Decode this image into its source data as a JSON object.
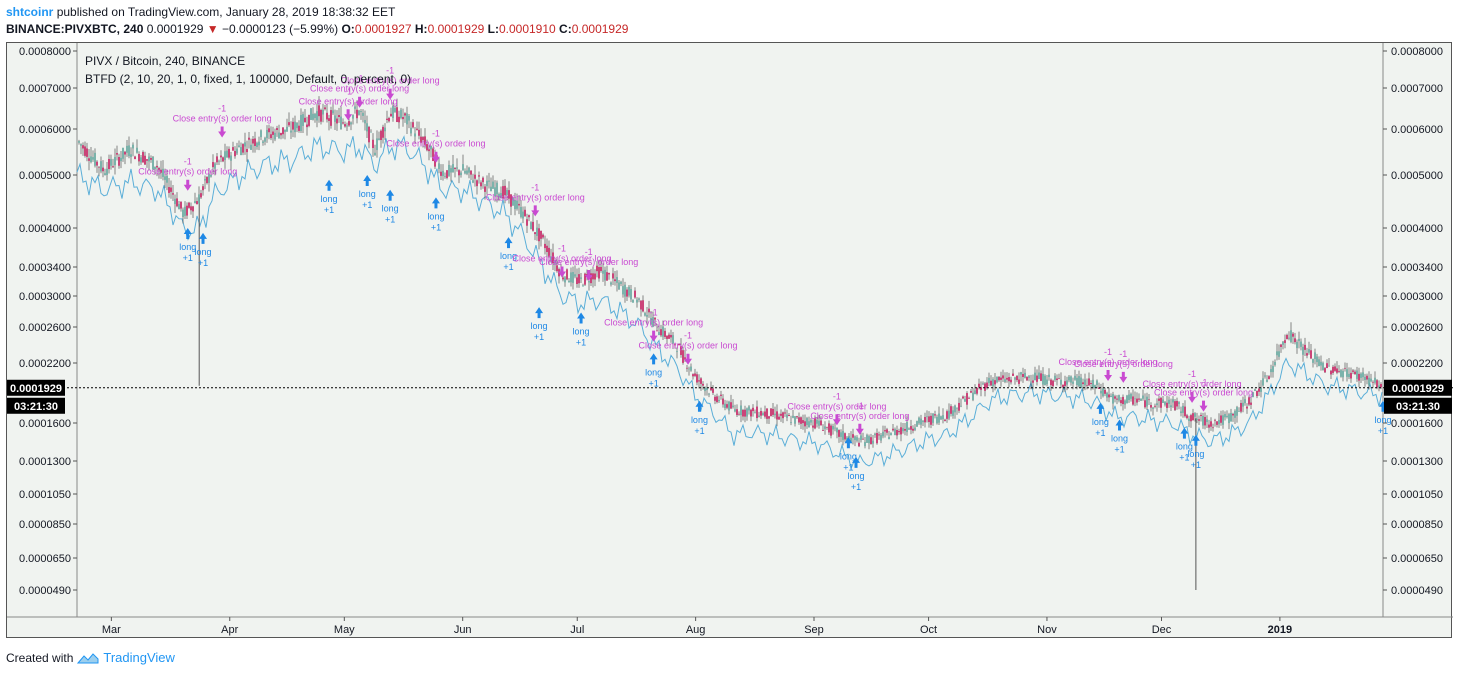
{
  "header": {
    "user": "shtcoinr",
    "published_text": "published on TradingView.com, January 28, 2019 18:38:32 EET",
    "symbol": "BINANCE:PIVXBTC, 240",
    "last": "0.0001929",
    "change": "−0.0000123 (−5.99%)",
    "o_label": "O:",
    "o": "0.0001927",
    "h_label": "H:",
    "h": "0.0001929",
    "l_label": "L:",
    "l": "0.0001910",
    "c_label": "C:",
    "c": "0.0001929"
  },
  "legend": {
    "title": "PIVX / Bitcoin, 240, BINANCE",
    "study": "BTFD (2, 10, 20, 1, 0, fixed, 1, 100000, Default, 0, percent, 0)"
  },
  "price_tag": {
    "price": "0.0001929",
    "countdown": "03:21:30"
  },
  "footer": {
    "created_with": "Created with",
    "brand": "TradingView"
  },
  "colors": {
    "up": "#5ea39a",
    "down": "#c2185b",
    "band": "#5aaed8",
    "long": "#1e88e5",
    "close": "#c94ad1",
    "tag_bg": "#000000"
  },
  "chart_data": {
    "type": "line",
    "title": "PIVX / Bitcoin, 240, BINANCE",
    "y_scale": "log",
    "ylim": [
      0.00043,
      0.00086
    ],
    "y_ticks": [
      "0.0008000",
      "0.0007000",
      "0.0006000",
      "0.0005000",
      "0.0004000",
      "0.0003400",
      "0.0003000",
      "0.0002600",
      "0.0002200",
      "0.0001600",
      "0.0001300",
      "0.0001050",
      "0.0000850",
      "0.0000650",
      "0.0000490"
    ],
    "x_ticks": [
      "Mar",
      "Apr",
      "May",
      "Jun",
      "Jul",
      "Aug",
      "Sep",
      "Oct",
      "Nov",
      "Dec",
      "2019"
    ],
    "x_range": [
      "2018-02-20",
      "2019-01-28"
    ],
    "series": [
      {
        "name": "PIVXBTC",
        "x": [
          "2018-02-20",
          "2018-02-27",
          "2018-03-06",
          "2018-03-13",
          "2018-03-17",
          "2018-03-20",
          "2018-03-24",
          "2018-03-28",
          "2018-04-03",
          "2018-04-10",
          "2018-04-17",
          "2018-04-24",
          "2018-05-01",
          "2018-05-05",
          "2018-05-09",
          "2018-05-13",
          "2018-05-17",
          "2018-05-22",
          "2018-05-27",
          "2018-06-01",
          "2018-06-07",
          "2018-06-12",
          "2018-06-17",
          "2018-06-22",
          "2018-06-27",
          "2018-07-02",
          "2018-07-07",
          "2018-07-12",
          "2018-07-17",
          "2018-07-22",
          "2018-07-27",
          "2018-08-01",
          "2018-08-06",
          "2018-08-11",
          "2018-08-16",
          "2018-08-21",
          "2018-08-27",
          "2018-09-02",
          "2018-09-08",
          "2018-09-13",
          "2018-09-18",
          "2018-09-24",
          "2018-09-30",
          "2018-10-06",
          "2018-10-12",
          "2018-10-17",
          "2018-10-22",
          "2018-10-28",
          "2018-11-03",
          "2018-11-09",
          "2018-11-14",
          "2018-11-19",
          "2018-11-24",
          "2018-11-29",
          "2018-12-04",
          "2018-12-09",
          "2018-12-14",
          "2018-12-19",
          "2018-12-24",
          "2018-12-29",
          "2019-01-03",
          "2019-01-08",
          "2019-01-13",
          "2019-01-18",
          "2019-01-23",
          "2019-01-28"
        ],
        "close": [
          0.000575,
          0.00051,
          0.000555,
          0.00052,
          0.000465,
          0.000425,
          0.000455,
          0.00052,
          0.000555,
          0.000585,
          0.0006,
          0.00064,
          0.000615,
          0.000645,
          0.000555,
          0.00064,
          0.000625,
          0.00057,
          0.000505,
          0.00051,
          0.00048,
          0.000465,
          0.000425,
          0.00038,
          0.00033,
          0.00032,
          0.000335,
          0.000315,
          0.000295,
          0.00026,
          0.00024,
          0.000205,
          0.000185,
          0.000172,
          0.00017,
          0.000168,
          0.000163,
          0.00016,
          0.00015,
          0.000145,
          0.000148,
          0.000155,
          0.000162,
          0.000168,
          0.000185,
          0.0002,
          0.000202,
          0.000205,
          0.0002,
          0.0002,
          0.000195,
          0.00018,
          0.000182,
          0.000178,
          0.000178,
          0.000165,
          0.00016,
          0.000165,
          0.00018,
          0.000205,
          0.000255,
          0.000232,
          0.000215,
          0.00021,
          0.000205,
          0.0001929
        ]
      },
      {
        "name": "Band",
        "x": [
          "2018-02-20",
          "2018-02-27",
          "2018-03-06",
          "2018-03-13",
          "2018-03-17",
          "2018-03-20",
          "2018-03-24",
          "2018-03-28",
          "2018-04-03",
          "2018-04-10",
          "2018-04-17",
          "2018-04-24",
          "2018-05-01",
          "2018-05-05",
          "2018-05-09",
          "2018-05-13",
          "2018-05-17",
          "2018-05-22",
          "2018-05-27",
          "2018-06-01",
          "2018-06-07",
          "2018-06-12",
          "2018-06-17",
          "2018-06-22",
          "2018-06-27",
          "2018-07-02",
          "2018-07-07",
          "2018-07-12",
          "2018-07-17",
          "2018-07-22",
          "2018-07-27",
          "2018-08-01",
          "2018-08-06",
          "2018-08-11",
          "2018-08-16",
          "2018-08-21",
          "2018-08-27",
          "2018-09-02",
          "2018-09-08",
          "2018-09-13",
          "2018-09-18",
          "2018-09-24",
          "2018-09-30",
          "2018-10-06",
          "2018-10-12",
          "2018-10-17",
          "2018-10-22",
          "2018-10-28",
          "2018-11-03",
          "2018-11-09",
          "2018-11-14",
          "2018-11-19",
          "2018-11-24",
          "2018-11-29",
          "2018-12-04",
          "2018-12-09",
          "2018-12-14",
          "2018-12-19",
          "2018-12-24",
          "2018-12-29",
          "2019-01-03",
          "2019-01-08",
          "2019-01-13",
          "2019-01-18",
          "2019-01-23",
          "2019-01-28"
        ],
        "close": [
          0.0005,
          0.00047,
          0.000485,
          0.00047,
          0.00043,
          0.000395,
          0.0004,
          0.00046,
          0.000495,
          0.00052,
          0.00053,
          0.00056,
          0.00055,
          0.00056,
          0.00052,
          0.00056,
          0.00056,
          0.00052,
          0.00047,
          0.00047,
          0.000445,
          0.000425,
          0.000385,
          0.00034,
          0.0003,
          0.00029,
          0.000295,
          0.00028,
          0.000262,
          0.000235,
          0.000215,
          0.000185,
          0.000168,
          0.00015,
          0.000152,
          0.00015,
          0.000146,
          0.000143,
          0.000135,
          0.000128,
          0.000132,
          0.000138,
          0.000145,
          0.00015,
          0.000165,
          0.00018,
          0.000185,
          0.000188,
          0.000185,
          0.000183,
          0.000178,
          0.000165,
          0.000165,
          0.000162,
          0.00016,
          0.00015,
          0.000145,
          0.00015,
          0.00016,
          0.000185,
          0.00022,
          0.000208,
          0.000195,
          0.000192,
          0.000188,
          0.000185
        ]
      }
    ],
    "spikes": [
      {
        "x": "2018-03-24",
        "low": 0.000195
      },
      {
        "x": "2018-12-10",
        "low": 4.9e-05
      }
    ],
    "signals_long": [
      {
        "x": "2018-03-21",
        "y": 0.0004,
        "label": "long",
        "qty": "+1"
      },
      {
        "x": "2018-03-25",
        "y": 0.000392,
        "label": "long",
        "qty": "+1"
      },
      {
        "x": "2018-04-27",
        "y": 0.00049,
        "label": "long",
        "qty": "+1"
      },
      {
        "x": "2018-05-07",
        "y": 0.0005,
        "label": "long",
        "qty": "+1"
      },
      {
        "x": "2018-05-13",
        "y": 0.00047,
        "label": "long",
        "qty": "+1"
      },
      {
        "x": "2018-05-25",
        "y": 0.000455,
        "label": "long",
        "qty": "+1"
      },
      {
        "x": "2018-06-13",
        "y": 0.000385,
        "label": "long",
        "qty": "+1"
      },
      {
        "x": "2018-06-21",
        "y": 0.000285,
        "label": "long",
        "qty": "+1"
      },
      {
        "x": "2018-07-02",
        "y": 0.000278,
        "label": "long",
        "qty": "+1"
      },
      {
        "x": "2018-07-21",
        "y": 0.00023,
        "label": "long",
        "qty": "+1"
      },
      {
        "x": "2018-08-02",
        "y": 0.00018,
        "label": "long",
        "qty": "+1"
      },
      {
        "x": "2018-09-10",
        "y": 0.000148,
        "label": "long",
        "qty": "+1"
      },
      {
        "x": "2018-09-12",
        "y": 0.000133,
        "label": "long",
        "qty": "+1"
      },
      {
        "x": "2018-11-15",
        "y": 0.000178,
        "label": "long",
        "qty": "+1"
      },
      {
        "x": "2018-11-20",
        "y": 0.000163,
        "label": "long",
        "qty": "+1"
      },
      {
        "x": "2018-12-07",
        "y": 0.000156,
        "label": "long",
        "qty": "+1"
      },
      {
        "x": "2018-12-10",
        "y": 0.00015,
        "label": "long",
        "qty": "+1"
      },
      {
        "x": "2019-01-28",
        "y": 0.00018,
        "label": "long",
        "qty": "+1"
      }
    ],
    "signals_close": [
      {
        "x": "2018-03-21",
        "y": 0.000468,
        "label": "Close entry(s) order long",
        "qty": "-1"
      },
      {
        "x": "2018-03-30",
        "y": 0.00058,
        "label": "Close entry(s) order long",
        "qty": "-1"
      },
      {
        "x": "2018-05-02",
        "y": 0.00062,
        "label": "Close entry(s) order long",
        "qty": "-1"
      },
      {
        "x": "2018-05-05",
        "y": 0.00065,
        "label": "Close entry(s) order long",
        "qty": "-1"
      },
      {
        "x": "2018-05-13",
        "y": 0.00067,
        "label": "Close entry(s) order long",
        "qty": "-1"
      },
      {
        "x": "2018-05-25",
        "y": 0.000525,
        "label": "Close entry(s) order long",
        "qty": "-1"
      },
      {
        "x": "2018-06-20",
        "y": 0.00042,
        "label": "Close entry(s) order long",
        "qty": "-1"
      },
      {
        "x": "2018-06-27",
        "y": 0.000325,
        "label": "Close entry(s) order long",
        "qty": "-1"
      },
      {
        "x": "2018-07-04",
        "y": 0.00032,
        "label": "Close entry(s) order long",
        "qty": "-1"
      },
      {
        "x": "2018-07-21",
        "y": 0.000243,
        "label": "Close entry(s) order long",
        "qty": "-1"
      },
      {
        "x": "2018-07-30",
        "y": 0.000218,
        "label": "Close entry(s) order long",
        "qty": "-1"
      },
      {
        "x": "2018-09-07",
        "y": 0.000158,
        "label": "Close entry(s) order long",
        "qty": "-1"
      },
      {
        "x": "2018-09-13",
        "y": 0.00015,
        "label": "Close entry(s) order long",
        "qty": "-1"
      },
      {
        "x": "2018-11-17",
        "y": 0.0002,
        "label": "Close entry(s) order long",
        "qty": "-1"
      },
      {
        "x": "2018-11-21",
        "y": 0.000198,
        "label": "Close entry(s) order long",
        "qty": "-1"
      },
      {
        "x": "2018-12-09",
        "y": 0.000178,
        "label": "Close entry(s) order long",
        "qty": "-1"
      },
      {
        "x": "2018-12-12",
        "y": 0.00017,
        "label": "Close entry(s) order long",
        "qty": "-1"
      }
    ]
  }
}
